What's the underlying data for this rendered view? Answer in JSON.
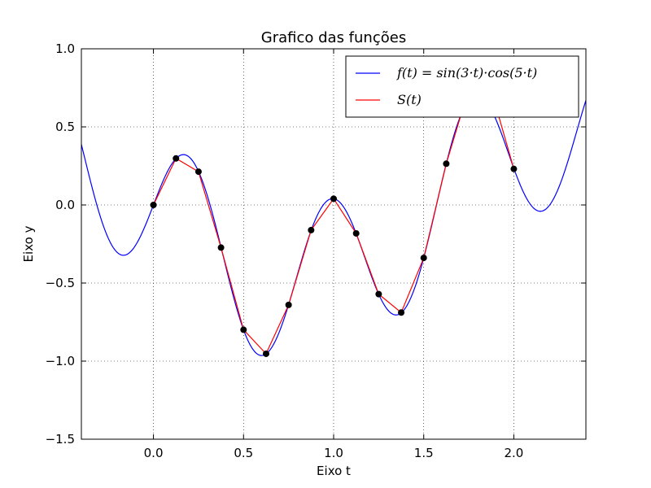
{
  "chart_data": {
    "type": "line",
    "title": "Grafico das funções",
    "xlabel": "Eixo t",
    "ylabel": "Eixo y",
    "xlim": [
      -0.4,
      2.4
    ],
    "ylim": [
      -1.5,
      1.0
    ],
    "xticks": [
      0.0,
      0.5,
      1.0,
      1.5,
      2.0
    ],
    "xtick_labels": [
      "0.0",
      "0.5",
      "1.0",
      "1.5",
      "2.0"
    ],
    "yticks": [
      -1.5,
      -1.0,
      -0.5,
      0.0,
      0.5,
      1.0
    ],
    "ytick_labels": [
      "−1.5",
      "−1.0",
      "−0.5",
      "0.0",
      "0.5",
      "1.0"
    ],
    "grid": true,
    "legend_position": "top-right",
    "series": [
      {
        "name": "f(t) = sin(3·t)·cos(5·t)",
        "color": "#0000ff",
        "kind": "function",
        "expression": "sin(3*t)*cos(5*t)"
      },
      {
        "name": "S(t)",
        "color": "#ff0000",
        "kind": "piecewise-linear",
        "x": [
          0.0,
          0.125,
          0.25,
          0.375,
          0.5,
          0.625,
          0.75,
          0.875,
          1.0,
          1.125,
          1.25,
          1.375,
          1.5,
          1.625,
          1.75,
          1.875,
          2.0
        ],
        "y": [
          0.0,
          0.298,
          0.213,
          -0.273,
          -0.799,
          -0.953,
          -0.64,
          -0.161,
          0.04,
          -0.182,
          -0.571,
          -0.689,
          -0.339,
          0.264,
          0.743,
          0.735,
          0.231
        ]
      }
    ],
    "markers": {
      "color": "#000000",
      "x": [
        0.0,
        0.125,
        0.25,
        0.375,
        0.5,
        0.625,
        0.75,
        0.875,
        1.0,
        1.125,
        1.25,
        1.375,
        1.5,
        1.625,
        1.75,
        1.875,
        2.0
      ],
      "y": [
        0.0,
        0.298,
        0.213,
        -0.273,
        -0.799,
        -0.953,
        -0.64,
        -0.161,
        0.04,
        -0.182,
        -0.571,
        -0.689,
        -0.339,
        0.264,
        0.743,
        0.735,
        0.231
      ]
    }
  }
}
